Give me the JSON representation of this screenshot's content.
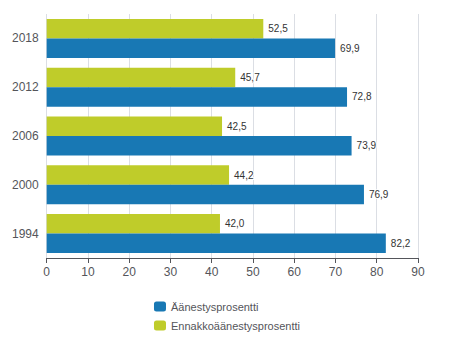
{
  "chart_data": {
    "type": "bar",
    "orientation": "horizontal",
    "categories": [
      "1994",
      "2000",
      "2006",
      "2012",
      "2018"
    ],
    "series": [
      {
        "name": "Äänestysprosentti",
        "color": "#1878B4",
        "values": [
          82.2,
          76.9,
          73.9,
          72.8,
          69.9
        ],
        "value_labels": [
          "82,2",
          "76,9",
          "73,9",
          "72,8",
          "69,9"
        ]
      },
      {
        "name": "Ennakkoäänestysprosentti",
        "color": "#BFCC2A",
        "values": [
          42.0,
          44.2,
          42.5,
          45.7,
          52.5
        ],
        "value_labels": [
          "42,0",
          "44,2",
          "42,5",
          "45,7",
          "52,5"
        ]
      }
    ],
    "xlim": [
      0,
      90
    ],
    "xticks": [
      0,
      10,
      20,
      30,
      40,
      50,
      60,
      70,
      80,
      90
    ],
    "grid": true,
    "legend": "bottom",
    "data_labels": true
  }
}
